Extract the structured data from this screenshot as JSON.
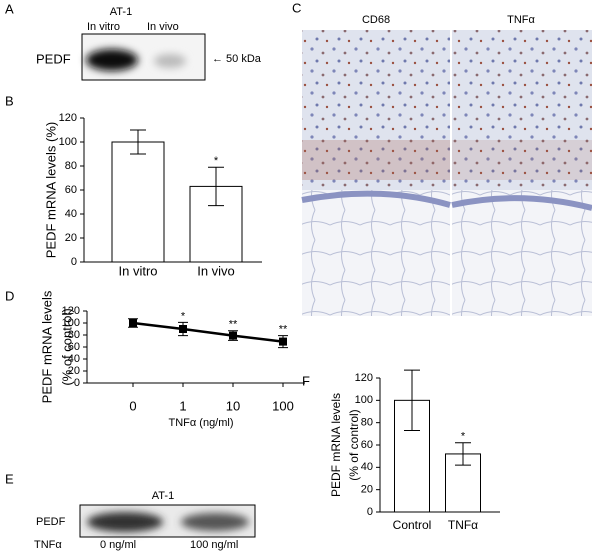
{
  "panels": {
    "a": "A",
    "b": "B",
    "c": "C",
    "d": "D",
    "e": "E",
    "f": "F"
  },
  "blot_a": {
    "title": "AT-1",
    "lanes": [
      "In vitro",
      "In vivo"
    ],
    "band": "PEDF",
    "marker": "← 50 kDa"
  },
  "histology": {
    "left": "CD68",
    "right": "TNFα"
  },
  "blot_e": {
    "title": "AT-1",
    "band": "PEDF",
    "treatment": "TNFα",
    "lanes": [
      "0 ng/ml",
      "100 ng/ml"
    ]
  },
  "chart_data": [
    {
      "type": "bar",
      "ylabel": [
        "PEDF mRNA levels (%)"
      ],
      "categories": [
        "In vitro",
        "In vivo"
      ],
      "values": [
        100,
        63
      ],
      "errors": [
        10,
        16
      ],
      "annotations": [
        null,
        "*"
      ],
      "ylim": [
        0,
        120
      ],
      "yticks": [
        0,
        20,
        40,
        60,
        80,
        100,
        120
      ]
    },
    {
      "type": "line",
      "ylabel": [
        "PEDF mRNA levels",
        "(% of control)"
      ],
      "xlabel": "TNFα (ng/ml)",
      "categories": [
        "0",
        "1",
        "10",
        "100"
      ],
      "values": [
        100,
        90,
        79,
        69
      ],
      "errors": [
        7,
        11,
        8,
        10
      ],
      "annotations": [
        null,
        "*",
        "**",
        "**"
      ],
      "ylim": [
        0,
        120
      ],
      "yticks": [
        0,
        20,
        40,
        60,
        80,
        100,
        120
      ]
    },
    {
      "type": "bar",
      "ylabel": [
        "PEDF mRNA levels",
        "(% of control)"
      ],
      "categories": [
        "Control",
        "TNFα"
      ],
      "values": [
        100,
        52
      ],
      "errors": [
        27,
        10
      ],
      "annotations": [
        null,
        "*"
      ],
      "ylim": [
        0,
        120
      ],
      "yticks": [
        0,
        20,
        40,
        60,
        80,
        100,
        120
      ]
    }
  ]
}
